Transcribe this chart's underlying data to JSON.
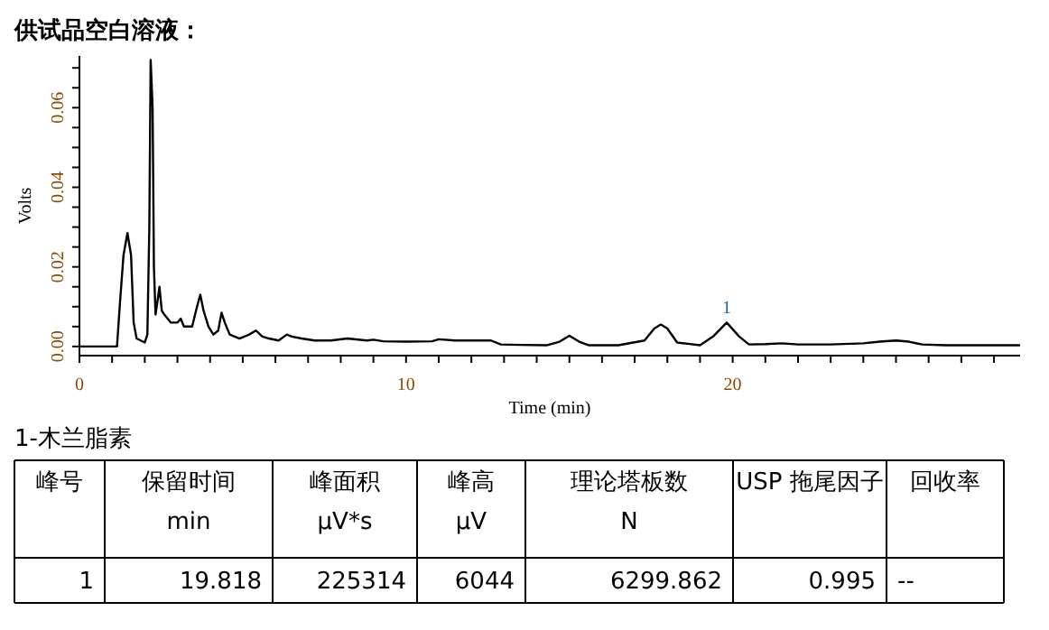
{
  "chart_data": {
    "type": "line",
    "title": "供试品空白溶液：",
    "xlabel": "Time (min)",
    "ylabel": "Volts",
    "xlim": [
      0,
      28.8
    ],
    "ylim": [
      -0.0023,
      0.073
    ],
    "xticks": [
      {
        "value": 0,
        "label": "0"
      },
      {
        "value": 1,
        "label": null
      },
      {
        "value": 2,
        "label": null
      },
      {
        "value": 3,
        "label": null
      },
      {
        "value": 4,
        "label": null
      },
      {
        "value": 5,
        "label": null
      },
      {
        "value": 6,
        "label": null
      },
      {
        "value": 7,
        "label": null
      },
      {
        "value": 8,
        "label": null
      },
      {
        "value": 9,
        "label": null
      },
      {
        "value": 10,
        "label": "10"
      },
      {
        "value": 11,
        "label": null
      },
      {
        "value": 12,
        "label": null
      },
      {
        "value": 13,
        "label": null
      },
      {
        "value": 14,
        "label": null
      },
      {
        "value": 15,
        "label": null
      },
      {
        "value": 16,
        "label": null
      },
      {
        "value": 17,
        "label": null
      },
      {
        "value": 18,
        "label": null
      },
      {
        "value": 19,
        "label": null
      },
      {
        "value": 20,
        "label": "20"
      },
      {
        "value": 21,
        "label": null
      },
      {
        "value": 22,
        "label": null
      },
      {
        "value": 23,
        "label": null
      },
      {
        "value": 24,
        "label": null
      },
      {
        "value": 25,
        "label": null
      },
      {
        "value": 26,
        "label": null
      },
      {
        "value": 27,
        "label": null
      },
      {
        "value": 28,
        "label": null
      }
    ],
    "yticks": [
      {
        "value": 0,
        "label": "0.00"
      },
      {
        "value": 0.005,
        "label": null
      },
      {
        "value": 0.01,
        "label": null
      },
      {
        "value": 0.015,
        "label": null
      },
      {
        "value": 0.02,
        "label": "0.02"
      },
      {
        "value": 0.025,
        "label": null
      },
      {
        "value": 0.03,
        "label": null
      },
      {
        "value": 0.035,
        "label": null
      },
      {
        "value": 0.04,
        "label": "0.04"
      },
      {
        "value": 0.045,
        "label": null
      },
      {
        "value": 0.05,
        "label": null
      },
      {
        "value": 0.055,
        "label": null
      },
      {
        "value": 0.06,
        "label": "0.06"
      },
      {
        "value": 0.065,
        "label": null
      },
      {
        "value": 0.07,
        "label": null
      }
    ],
    "series": [
      {
        "color": "#000000",
        "x": [
          0,
          1.15,
          1.25,
          1.35,
          1.47,
          1.58,
          1.66,
          1.75,
          2.0,
          2.08,
          2.14,
          2.18,
          2.24,
          2.28,
          2.33,
          2.4,
          2.45,
          2.52,
          2.6,
          2.8,
          3.0,
          3.1,
          3.2,
          3.45,
          3.6,
          3.7,
          3.8,
          3.95,
          4.1,
          4.25,
          4.35,
          4.45,
          4.6,
          4.9,
          5.2,
          5.4,
          5.6,
          5.8,
          6.1,
          6.35,
          6.5,
          6.8,
          7.2,
          7.7,
          8.2,
          8.8,
          9.0,
          9.3,
          10.0,
          10.8,
          11.0,
          11.5,
          12.6,
          12.9,
          13.5,
          14.3,
          14.7,
          15.0,
          15.3,
          15.6,
          16.5,
          17.3,
          17.6,
          17.8,
          18.0,
          18.3,
          19.0,
          19.4,
          19.818,
          20.2,
          20.5,
          21.0,
          21.5,
          22.0,
          23.0,
          24.0,
          24.5,
          25.0,
          25.4,
          25.8,
          26.5,
          28.8
        ],
        "values": [
          0,
          0,
          0.012,
          0.023,
          0.0285,
          0.023,
          0.006,
          0.002,
          0.001,
          0.003,
          0.03,
          0.072,
          0.06,
          0.02,
          0.008,
          0.012,
          0.015,
          0.009,
          0.008,
          0.006,
          0.006,
          0.007,
          0.005,
          0.005,
          0.01,
          0.013,
          0.009,
          0.005,
          0.003,
          0.004,
          0.0085,
          0.006,
          0.003,
          0.002,
          0.003,
          0.004,
          0.0025,
          0.002,
          0.0015,
          0.003,
          0.0025,
          0.002,
          0.0015,
          0.0015,
          0.002,
          0.0015,
          0.0017,
          0.0013,
          0.0012,
          0.0013,
          0.0018,
          0.0015,
          0.0015,
          0.0005,
          0.0004,
          0.0003,
          0.0012,
          0.0027,
          0.0012,
          0.0003,
          0.0003,
          0.0015,
          0.0045,
          0.0055,
          0.0045,
          0.001,
          0.0003,
          0.0025,
          0.006,
          0.0025,
          0.0005,
          0.0006,
          0.0008,
          0.0005,
          0.0005,
          0.0008,
          0.0012,
          0.0015,
          0.0012,
          0.0005,
          0.0003,
          0.0003
        ]
      }
    ],
    "annotations": [
      {
        "text": "1",
        "x": 19.818,
        "y": 0.006
      },
      "1-木兰脂素",
      "峰号",
      "保留时间\nmin",
      "峰面积\nμV*s",
      "峰高\nμV",
      "理论塔板数\nN",
      "USP 拖尾因子",
      "回收率",
      "1",
      "19.818",
      "225314",
      "6044",
      "6299.862",
      "0.995",
      "--"
    ]
  }
}
